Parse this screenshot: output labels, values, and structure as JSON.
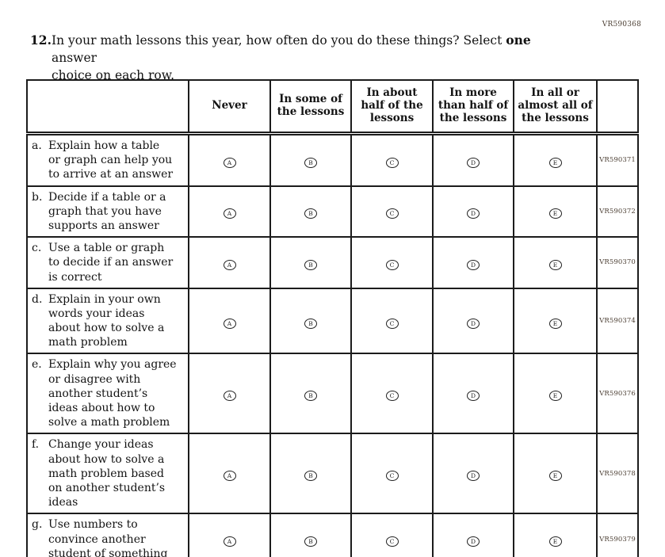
{
  "page": {
    "code": "VR590368"
  },
  "question": {
    "number": "12.",
    "line1_pre": "In your math lessons this year, how often do you do these things? Select ",
    "bold_word": "one",
    "line1_post": " answer",
    "line2": "choice on each row."
  },
  "table": {
    "columns": [
      "",
      "Never",
      "In some of\nthe lessons",
      "In about\nhalf of the\nlessons",
      "In more\nthan half of\nthe lessons",
      "In all or\nalmost all of\nthe lessons",
      ""
    ],
    "option_letters": [
      "A",
      "B",
      "C",
      "D",
      "E"
    ],
    "rows": [
      {
        "letter": "a.",
        "text": "Explain how a table\nor graph can help you\nto arrive at an answer",
        "vr_code": "VR590371"
      },
      {
        "letter": "b.",
        "text": "Decide if a table or a\ngraph that you have\nsupports an answer",
        "vr_code": "VR590372"
      },
      {
        "letter": "c.",
        "text": "Use a table or graph\nto decide if an answer\nis correct",
        "vr_code": "VR590370"
      },
      {
        "letter": "d.",
        "text": "Explain in your own\nwords your ideas\nabout how to solve a\nmath problem",
        "vr_code": "VR590374"
      },
      {
        "letter": "e.",
        "text": "Explain why you agree\nor disagree with\nanother student’s\nideas about how to\nsolve a math problem",
        "vr_code": "VR590376"
      },
      {
        "letter": "f.",
        "text": "Change your ideas\nabout how to solve a\nmath problem based\non another student’s\nideas",
        "vr_code": "VR590378"
      },
      {
        "letter": "g.",
        "text": "Use numbers to\nconvince another\nstudent of something",
        "vr_code": "VR590379"
      }
    ]
  },
  "colors": {
    "text": "#131313",
    "table_border": "#1c1c1c",
    "vr_code_text": "#4d4035"
  }
}
